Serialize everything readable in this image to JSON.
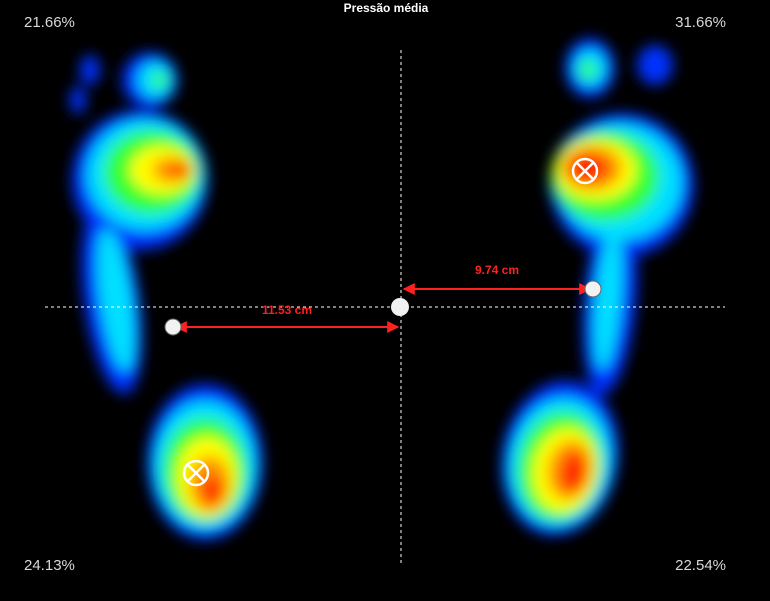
{
  "title": "Pressão média",
  "quadrants": {
    "top_left": "21.66%",
    "top_right": "31.66%",
    "bottom_left": "24.13%",
    "bottom_right": "22.54%"
  },
  "measurements": {
    "left": "11.53 cm",
    "right": "9.74 cm"
  }
}
